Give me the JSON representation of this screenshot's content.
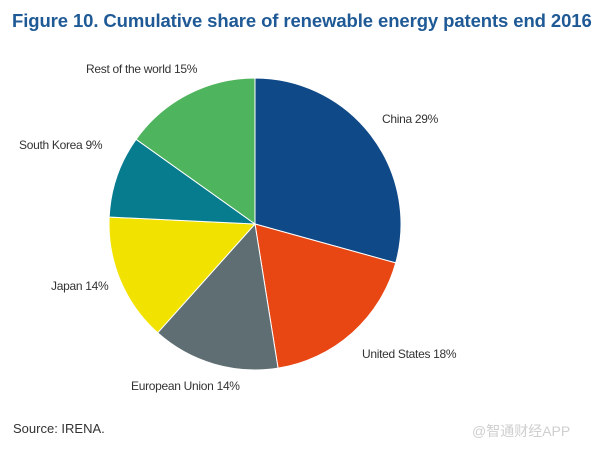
{
  "page": {
    "title": "Figure 10. Cumulative share of renewable energy patents end 2016",
    "source": "Source: IRENA.",
    "watermark": "@智通财经APP"
  },
  "chart_data": {
    "type": "pie",
    "title": "Figure 10. Cumulative share of renewable energy patents end 2016",
    "unit": "%",
    "slices": [
      {
        "label": "China 29%",
        "name": "China",
        "value": 29,
        "color": "#0f4987"
      },
      {
        "label": "United States 18%",
        "name": "United States",
        "value": 18,
        "color": "#e84613"
      },
      {
        "label": "European Union 14%",
        "name": "European Union",
        "value": 14,
        "color": "#5f6e73"
      },
      {
        "label": "Japan 14%",
        "name": "Japan",
        "value": 14,
        "color": "#f2e200"
      },
      {
        "label": "South Korea 9%",
        "name": "South Korea",
        "value": 9,
        "color": "#077c8e"
      },
      {
        "label": "Rest of the world 15%",
        "name": "Rest of the world",
        "value": 15,
        "color": "#4fb45e"
      }
    ],
    "start_angle": "12 o'clock",
    "direction": "clockwise",
    "legend": "none (labels beside slices)"
  }
}
